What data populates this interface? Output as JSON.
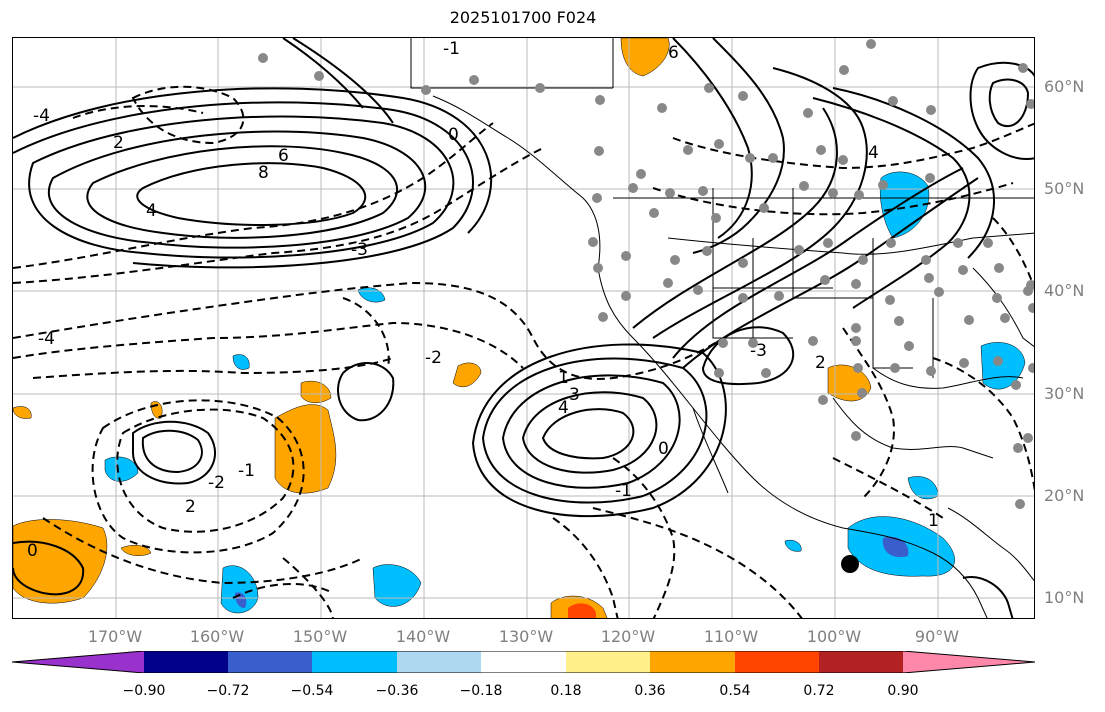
{
  "title": "2025101700 F024",
  "lat_labels": [
    "60°N",
    "50°N",
    "40°N",
    "30°N",
    "20°N",
    "10°N"
  ],
  "lon_labels": [
    "170°W",
    "160°W",
    "150°W",
    "140°W",
    "130°W",
    "120°W",
    "110°W",
    "100°W",
    "90°W"
  ],
  "colorbar": {
    "colors": [
      "#9932cc",
      "#00008b",
      "#3a5fcd",
      "#00bfff",
      "#add8f0",
      "#ffffff",
      "#fff08c",
      "#ffa500",
      "#ff4500",
      "#b22222",
      "#ff88aa"
    ],
    "ticks": [
      "−0.90",
      "−0.72",
      "−0.54",
      "−0.36",
      "−0.18",
      "0.18",
      "0.36",
      "0.54",
      "0.72",
      "0.90"
    ]
  },
  "contour_labels": [
    {
      "text": "8"
    },
    {
      "text": "6"
    },
    {
      "text": "4"
    },
    {
      "text": "2"
    },
    {
      "text": "0"
    },
    {
      "text": "-3"
    },
    {
      "text": "-4"
    },
    {
      "text": "-2"
    },
    {
      "text": "-1"
    },
    {
      "text": "4"
    },
    {
      "text": "3"
    },
    {
      "text": "1"
    },
    {
      "text": "-1"
    },
    {
      "text": "0"
    },
    {
      "text": "2"
    },
    {
      "text": "-2"
    },
    {
      "text": "-4"
    },
    {
      "text": "0"
    },
    {
      "text": "1"
    },
    {
      "text": "4"
    },
    {
      "text": "2"
    },
    {
      "text": "-1"
    },
    {
      "text": "6"
    },
    {
      "text": "-3"
    }
  ]
}
